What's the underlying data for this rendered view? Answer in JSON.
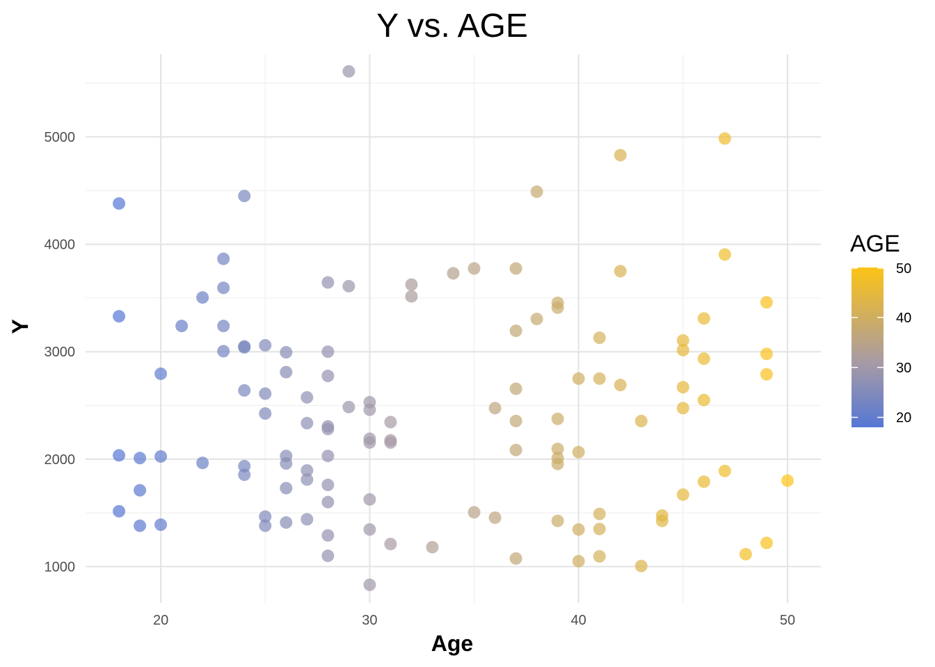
{
  "chart_data": {
    "type": "scatter",
    "title": "Y vs. AGE",
    "xlabel": "Age",
    "ylabel": "Y",
    "xlim": [
      16.4,
      51.6
    ],
    "ylim": [
      660,
      5770
    ],
    "x_ticks": [
      20,
      30,
      40,
      50
    ],
    "y_ticks": [
      1000,
      2000,
      3000,
      4000,
      5000
    ],
    "grid": true,
    "legend": {
      "title": "AGE",
      "placement": "right",
      "min": 18,
      "max": 50,
      "ticks": [
        20,
        30,
        40,
        50
      ],
      "low_color": "#5577d4",
      "high_color": "#fcc316"
    },
    "points": [
      {
        "x": 18,
        "y": 4380
      },
      {
        "x": 18,
        "y": 3330
      },
      {
        "x": 18,
        "y": 2035
      },
      {
        "x": 18,
        "y": 1515
      },
      {
        "x": 19,
        "y": 2010
      },
      {
        "x": 19,
        "y": 1710
      },
      {
        "x": 19,
        "y": 1380
      },
      {
        "x": 20,
        "y": 2795
      },
      {
        "x": 20,
        "y": 2025
      },
      {
        "x": 20,
        "y": 1390
      },
      {
        "x": 21,
        "y": 3240
      },
      {
        "x": 22,
        "y": 3505
      },
      {
        "x": 22,
        "y": 1965
      },
      {
        "x": 23,
        "y": 3865
      },
      {
        "x": 23,
        "y": 3595
      },
      {
        "x": 23,
        "y": 3240
      },
      {
        "x": 23,
        "y": 3005
      },
      {
        "x": 24,
        "y": 4450
      },
      {
        "x": 24,
        "y": 3050
      },
      {
        "x": 24,
        "y": 3040
      },
      {
        "x": 24,
        "y": 2640
      },
      {
        "x": 24,
        "y": 1935
      },
      {
        "x": 24,
        "y": 1855
      },
      {
        "x": 25,
        "y": 3060
      },
      {
        "x": 25,
        "y": 2610
      },
      {
        "x": 25,
        "y": 2425
      },
      {
        "x": 25,
        "y": 1465
      },
      {
        "x": 25,
        "y": 1380
      },
      {
        "x": 26,
        "y": 2995
      },
      {
        "x": 26,
        "y": 2810
      },
      {
        "x": 26,
        "y": 2030
      },
      {
        "x": 26,
        "y": 1960
      },
      {
        "x": 26,
        "y": 1730
      },
      {
        "x": 26,
        "y": 1410
      },
      {
        "x": 27,
        "y": 2575
      },
      {
        "x": 27,
        "y": 2335
      },
      {
        "x": 27,
        "y": 1895
      },
      {
        "x": 27,
        "y": 1810
      },
      {
        "x": 27,
        "y": 1440
      },
      {
        "x": 28,
        "y": 3645
      },
      {
        "x": 28,
        "y": 3000
      },
      {
        "x": 28,
        "y": 2775
      },
      {
        "x": 28,
        "y": 2305
      },
      {
        "x": 28,
        "y": 2280
      },
      {
        "x": 28,
        "y": 2030
      },
      {
        "x": 28,
        "y": 1760
      },
      {
        "x": 28,
        "y": 1600
      },
      {
        "x": 28,
        "y": 1290
      },
      {
        "x": 28,
        "y": 1100
      },
      {
        "x": 29,
        "y": 5610
      },
      {
        "x": 29,
        "y": 3610
      },
      {
        "x": 29,
        "y": 2485
      },
      {
        "x": 30,
        "y": 2530
      },
      {
        "x": 30,
        "y": 2460
      },
      {
        "x": 30,
        "y": 2190
      },
      {
        "x": 30,
        "y": 2155
      },
      {
        "x": 30,
        "y": 1625
      },
      {
        "x": 30,
        "y": 1345
      },
      {
        "x": 30,
        "y": 830
      },
      {
        "x": 31,
        "y": 2345
      },
      {
        "x": 31,
        "y": 2175
      },
      {
        "x": 31,
        "y": 2155
      },
      {
        "x": 31,
        "y": 1210
      },
      {
        "x": 32,
        "y": 3625
      },
      {
        "x": 32,
        "y": 3515
      },
      {
        "x": 33,
        "y": 1180
      },
      {
        "x": 34,
        "y": 3730
      },
      {
        "x": 35,
        "y": 3775
      },
      {
        "x": 35,
        "y": 1505
      },
      {
        "x": 36,
        "y": 2475
      },
      {
        "x": 36,
        "y": 1455
      },
      {
        "x": 37,
        "y": 3775
      },
      {
        "x": 37,
        "y": 3195
      },
      {
        "x": 37,
        "y": 2655
      },
      {
        "x": 37,
        "y": 2355
      },
      {
        "x": 37,
        "y": 2085
      },
      {
        "x": 37,
        "y": 1075
      },
      {
        "x": 38,
        "y": 4490
      },
      {
        "x": 38,
        "y": 3305
      },
      {
        "x": 39,
        "y": 3455
      },
      {
        "x": 39,
        "y": 3410
      },
      {
        "x": 39,
        "y": 2375
      },
      {
        "x": 39,
        "y": 2095
      },
      {
        "x": 39,
        "y": 2010
      },
      {
        "x": 39,
        "y": 1955
      },
      {
        "x": 39,
        "y": 1425
      },
      {
        "x": 40,
        "y": 2750
      },
      {
        "x": 40,
        "y": 2065
      },
      {
        "x": 40,
        "y": 1345
      },
      {
        "x": 40,
        "y": 1050
      },
      {
        "x": 41,
        "y": 3130
      },
      {
        "x": 41,
        "y": 2750
      },
      {
        "x": 41,
        "y": 1490
      },
      {
        "x": 41,
        "y": 1350
      },
      {
        "x": 41,
        "y": 1095
      },
      {
        "x": 42,
        "y": 4830
      },
      {
        "x": 42,
        "y": 3750
      },
      {
        "x": 42,
        "y": 2690
      },
      {
        "x": 43,
        "y": 2355
      },
      {
        "x": 43,
        "y": 1005
      },
      {
        "x": 44,
        "y": 1475
      },
      {
        "x": 44,
        "y": 1425
      },
      {
        "x": 45,
        "y": 3105
      },
      {
        "x": 45,
        "y": 3015
      },
      {
        "x": 45,
        "y": 2670
      },
      {
        "x": 45,
        "y": 2475
      },
      {
        "x": 45,
        "y": 1670
      },
      {
        "x": 46,
        "y": 3310
      },
      {
        "x": 46,
        "y": 2935
      },
      {
        "x": 46,
        "y": 2550
      },
      {
        "x": 46,
        "y": 1790
      },
      {
        "x": 47,
        "y": 4985
      },
      {
        "x": 47,
        "y": 3905
      },
      {
        "x": 47,
        "y": 1890
      },
      {
        "x": 48,
        "y": 1115
      },
      {
        "x": 49,
        "y": 3460
      },
      {
        "x": 49,
        "y": 2980
      },
      {
        "x": 49,
        "y": 2790
      },
      {
        "x": 49,
        "y": 1220
      },
      {
        "x": 50,
        "y": 1800
      }
    ]
  }
}
